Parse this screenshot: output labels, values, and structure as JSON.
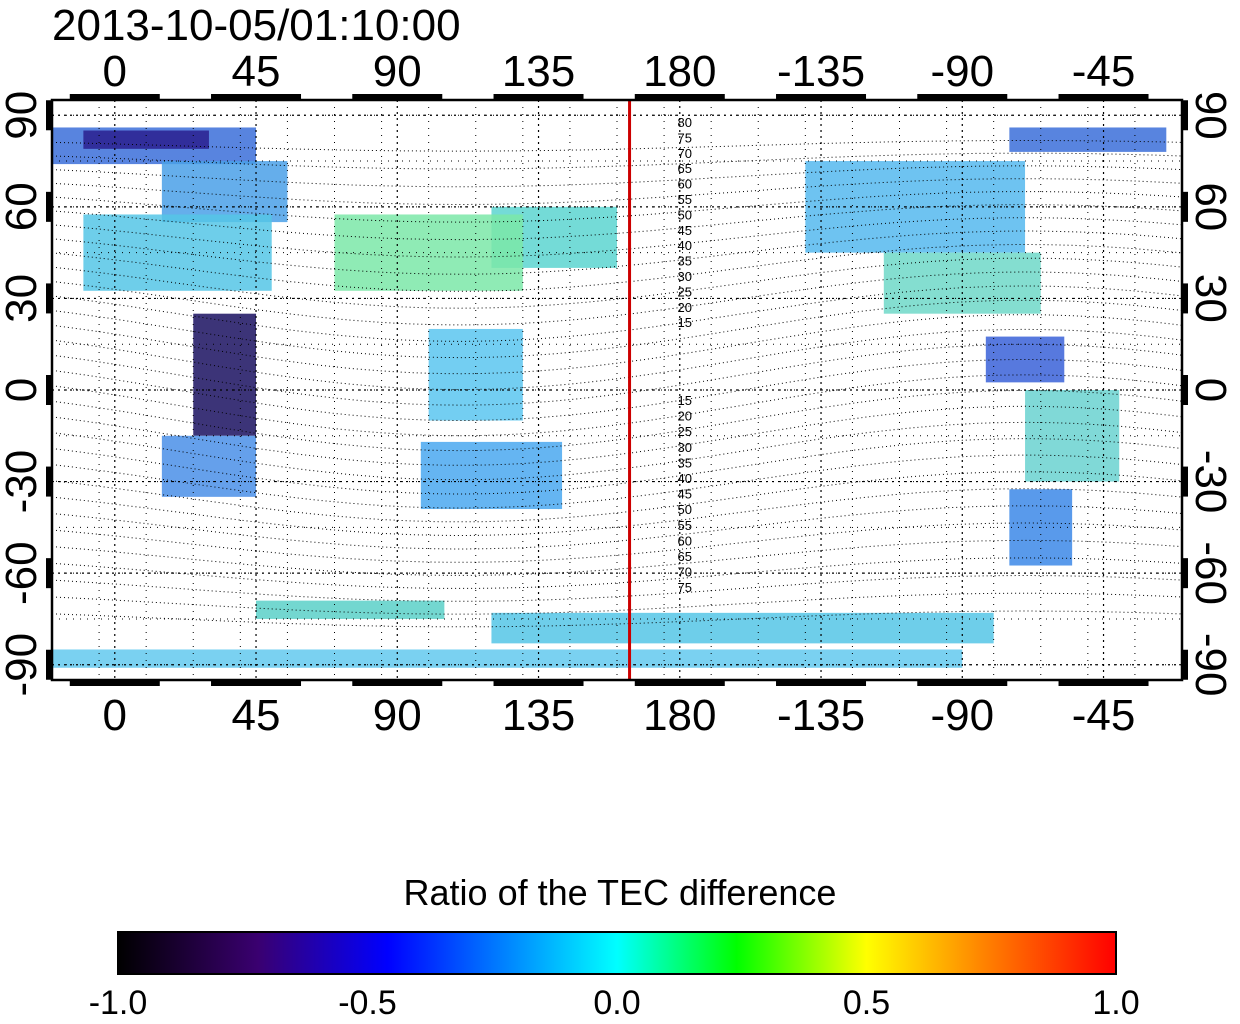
{
  "title": "2013-10-05/01:10:00",
  "map": {
    "top_lon_labels": [
      "0",
      "45",
      "90",
      "135",
      "180",
      "-135",
      "-90",
      "-45"
    ],
    "bottom_lon_labels": [
      "0",
      "45",
      "90",
      "135",
      "180",
      "-135",
      "-90",
      "-45"
    ],
    "left_lat_labels": [
      "90",
      "60",
      "30",
      "0",
      "-30",
      "-60",
      "-90"
    ],
    "right_lat_labels": [
      "90",
      "60",
      "30",
      "0",
      "-30",
      "-60",
      "-90"
    ],
    "lon_ticks": [
      0,
      45,
      90,
      135,
      180,
      225,
      270,
      315
    ],
    "lat_ticks": [
      90,
      60,
      30,
      0,
      -30,
      -60,
      -90
    ],
    "lon_range": [
      -20,
      340
    ],
    "lat_range": [
      -95,
      95
    ],
    "terminator_lon": 164,
    "terminator_color": "#cc0000",
    "north_mlat_labels": [
      "80",
      "75",
      "70",
      "65",
      "60",
      "55",
      "50",
      "45",
      "40",
      "35",
      "30",
      "25",
      "20",
      "15"
    ],
    "north_mlat_values": [
      80,
      75,
      70,
      65,
      60,
      55,
      50,
      45,
      40,
      35,
      30,
      25,
      20,
      15
    ],
    "south_mlat_labels": [
      "15",
      "20",
      "25",
      "30",
      "35",
      "40",
      "45",
      "50",
      "55",
      "60",
      "65",
      "70",
      "75"
    ],
    "south_mlat_values": [
      -15,
      -20,
      -25,
      -30,
      -35,
      -40,
      -45,
      -50,
      -55,
      -60,
      -65,
      -70,
      -75
    ]
  },
  "colorbar": {
    "title": "Ratio of the TEC difference",
    "ticks": [
      "-1.0",
      "-0.5",
      "0.0",
      "0.5",
      "1.0"
    ],
    "range": [
      -1.0,
      1.0
    ],
    "colors": [
      "#000000",
      "#3a0070",
      "#0000ff",
      "#00ffff",
      "#00ff00",
      "#ffff00",
      "#ff8000",
      "#ff0000"
    ]
  }
}
